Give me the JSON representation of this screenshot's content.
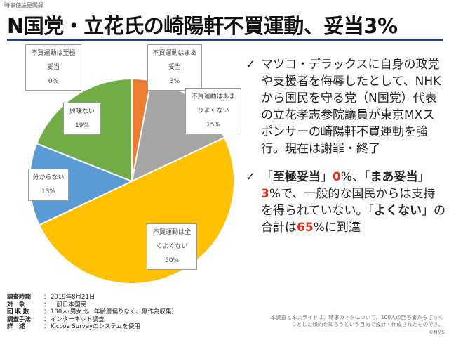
{
  "header_tag": "時事使論見聞録",
  "title": "N国党・立花氏の崎陽軒不買運動、妥当3%",
  "chart_data": {
    "type": "pie",
    "title": "",
    "slices": [
      {
        "label": "不買運動は至極妥当",
        "value": 0,
        "value_label": "0%",
        "color": "#5b9bd5"
      },
      {
        "label": "不買運動はまあ妥当",
        "value": 3,
        "value_label": "3%",
        "color": "#ed7d31"
      },
      {
        "label": "不買運動はあまりよくない",
        "value": 15,
        "value_label": "15%",
        "color": "#a5a5a5"
      },
      {
        "label": "不買運動は全くよくない",
        "value": 50,
        "value_label": "50%",
        "color": "#ffc000"
      },
      {
        "label": "分からない",
        "value": 13,
        "value_label": "13%",
        "color": "#5b9bd5"
      },
      {
        "label": "興味ない",
        "value": 19,
        "value_label": "19%",
        "color": "#70ad47"
      }
    ],
    "callout_lines": [
      [
        "不買運動は至極",
        "妥当",
        "0%"
      ],
      [
        "不買運動はまあ",
        "妥当",
        "3%"
      ],
      [
        "不買運動はあま",
        "りよくない",
        "15%"
      ],
      [
        "不買運動は全",
        "くよくない",
        "50%"
      ],
      [
        "分からない",
        "13%"
      ],
      [
        "興味ない",
        "19%"
      ]
    ]
  },
  "bullets": {
    "b1": "マツコ・デラックスに自身の政党や支援者を侮辱したとして、NHKから国民を守る党（N国党）代表の立花孝志参院議員が東京MXスポンサーの崎陽軒不買運動を強行。現在は謝罪・終了",
    "b2": {
      "p1": "「",
      "k1": "至極妥当",
      "p2": "」",
      "v1": "0",
      "p3": "%、「",
      "k2": "まあ妥当",
      "p4": "」",
      "v2": "3",
      "p5": "%で、一般的な国民からは支持を得られていない。「",
      "k3": "よくない",
      "p6": "」の合計は",
      "v3": "65",
      "p7": "%に到達"
    },
    "check": "✓"
  },
  "survey": [
    {
      "key": "調査時期",
      "value": "2019年8月21日"
    },
    {
      "key": "対　象",
      "value": "一般日本国民"
    },
    {
      "key": "回 収 数",
      "value": "100人(男女比、年齢層偏りなく、無作為収集)"
    },
    {
      "key": "調査手法",
      "value": "インターネット調査"
    },
    {
      "key": "詳　述",
      "value": "Kiccoe Surveyのシステムを使用"
    }
  ],
  "survey_sep": "：",
  "footnote": "本調査と本スライドは、時事のネタについて、100人の回答者からざっくりとした傾向を知ろうという目的で設計・作成されたものです。",
  "copyright": "©NMS"
}
